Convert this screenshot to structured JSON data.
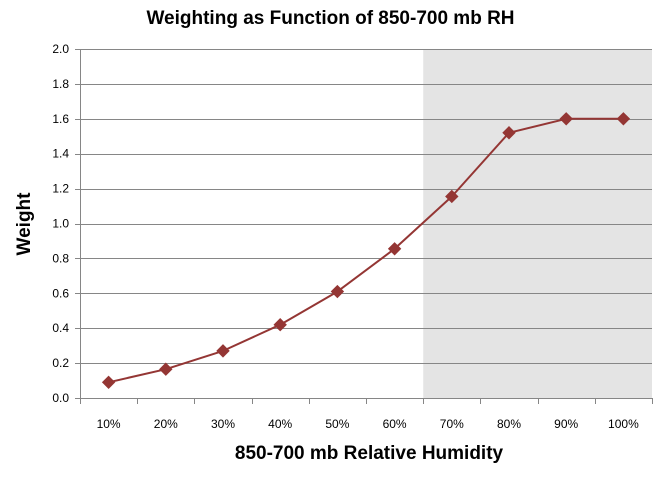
{
  "chart_data": {
    "type": "line",
    "title": "Weighting as Function of 850-700 mb RH",
    "xlabel": "850-700 mb Relative Humidity",
    "ylabel": "Weight",
    "categories": [
      "10%",
      "20%",
      "30%",
      "40%",
      "50%",
      "60%",
      "70%",
      "80%",
      "90%",
      "100%"
    ],
    "series": [
      {
        "values": [
          0.09,
          0.165,
          0.27,
          0.42,
          0.61,
          0.855,
          1.155,
          1.52,
          1.6,
          1.6
        ],
        "color": "#943634"
      }
    ],
    "ylim": [
      0,
      2.0
    ],
    "yticks": [
      "0.0",
      "0.2",
      "0.4",
      "0.6",
      "0.8",
      "1.0",
      "1.2",
      "1.4",
      "1.6",
      "1.8",
      "2.0"
    ],
    "ytick_values": [
      0,
      0.2,
      0.4,
      0.6,
      0.8,
      1.0,
      1.2,
      1.4,
      1.6,
      1.8,
      2.0
    ],
    "shaded_region": {
      "x_start": 6.5,
      "x_end": 10.5,
      "color": "#e4e4e4"
    },
    "grid": {
      "horizontal": true,
      "vertical": false
    },
    "marker": "diamond",
    "legend": "none"
  }
}
